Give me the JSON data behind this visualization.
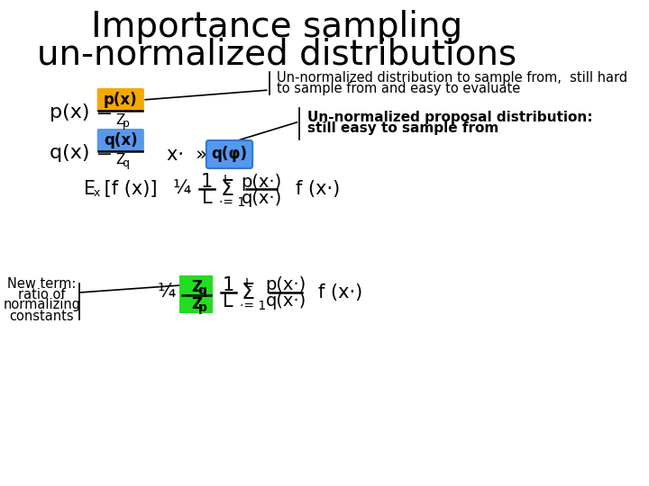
{
  "title_line1": "Importance sampling",
  "title_line2": "un-normalized distributions",
  "title_fontsize": 28,
  "bg_color": "#ffffff",
  "annotation1_line1": "Un-normalized distribution to sample from,  still hard",
  "annotation1_line2": "to sample from and easy to evaluate",
  "annotation2_line1": "Un-normalized proposal distribution:",
  "annotation2_line2": "still easy to sample from",
  "annotation3_text": "New term:\nratio of\nnormalizing\nconstants",
  "px_box_color": "#f5a800",
  "qx_box_color": "#5599ee",
  "qphi_box_color": "#5599ee",
  "zq_zp_box_color": "#22dd22",
  "body_fontsize": 14,
  "formula_fontsize": 15,
  "small_fontsize": 11
}
